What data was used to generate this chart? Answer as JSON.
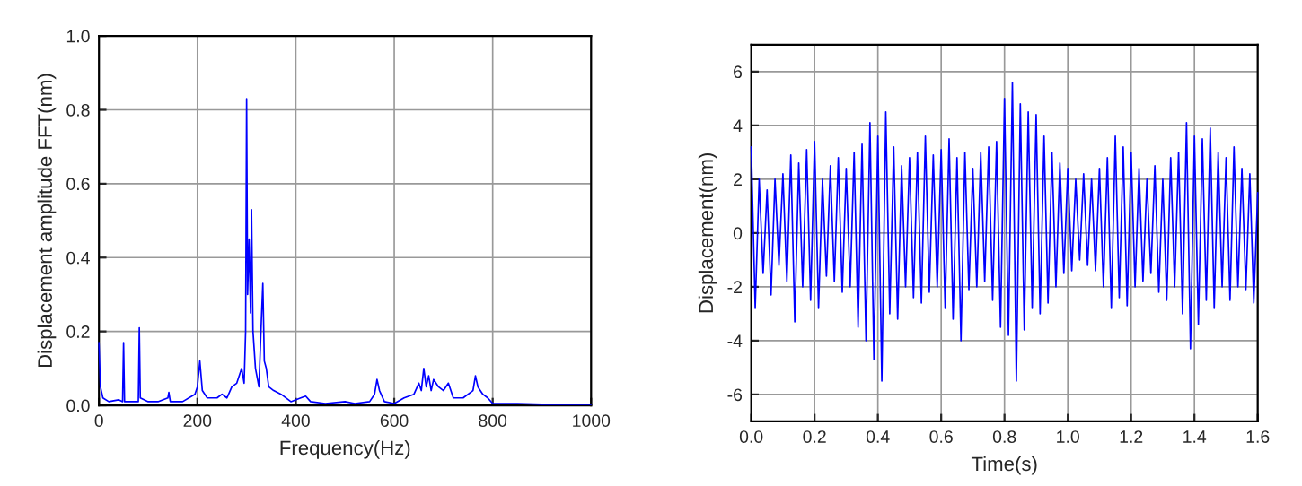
{
  "chart_data": [
    {
      "type": "line",
      "xlabel": "Frequency(Hz)",
      "ylabel": "Displacement amplitude FFT(nm)",
      "xlim": [
        0,
        1000
      ],
      "ylim": [
        0,
        1
      ],
      "xticks": [
        0,
        200,
        400,
        600,
        800,
        1000
      ],
      "yticks": [
        {
          "value": 0,
          "label": "0.0"
        },
        0.2,
        0.4,
        0.6,
        0.8,
        {
          "value": 1,
          "label": "1.0"
        }
      ],
      "grid": true,
      "legend": false,
      "series": [
        {
          "color": "#0000ff",
          "x": [
            0,
            3,
            8,
            20,
            40,
            48,
            50,
            52,
            70,
            80,
            82,
            84,
            100,
            120,
            140,
            142,
            145,
            170,
            195,
            200,
            205,
            210,
            220,
            240,
            250,
            260,
            270,
            280,
            290,
            295,
            298,
            300,
            302,
            305,
            308,
            310,
            313,
            318,
            325,
            330,
            333,
            336,
            340,
            345,
            355,
            370,
            390,
            410,
            420,
            430,
            460,
            500,
            520,
            550,
            560,
            565,
            570,
            580,
            600,
            620,
            640,
            650,
            655,
            660,
            665,
            670,
            675,
            680,
            690,
            700,
            710,
            720,
            740,
            760,
            765,
            770,
            780,
            790,
            800,
            850,
            900,
            950,
            1000
          ],
          "values": [
            0.17,
            0.05,
            0.02,
            0.01,
            0.015,
            0.01,
            0.17,
            0.01,
            0.01,
            0.01,
            0.21,
            0.02,
            0.01,
            0.01,
            0.02,
            0.035,
            0.01,
            0.01,
            0.03,
            0.05,
            0.12,
            0.04,
            0.02,
            0.02,
            0.03,
            0.02,
            0.05,
            0.06,
            0.1,
            0.06,
            0.2,
            0.83,
            0.3,
            0.45,
            0.25,
            0.53,
            0.2,
            0.1,
            0.05,
            0.23,
            0.33,
            0.12,
            0.1,
            0.05,
            0.04,
            0.03,
            0.01,
            0.02,
            0.025,
            0.01,
            0.005,
            0.01,
            0.005,
            0.01,
            0.03,
            0.07,
            0.04,
            0.01,
            0.005,
            0.02,
            0.03,
            0.06,
            0.04,
            0.1,
            0.05,
            0.08,
            0.04,
            0.07,
            0.05,
            0.04,
            0.06,
            0.02,
            0.02,
            0.04,
            0.08,
            0.05,
            0.03,
            0.02,
            0.005,
            0.005,
            0.003,
            0.003,
            0.003
          ]
        }
      ]
    },
    {
      "type": "line",
      "xlabel": "Time(s)",
      "ylabel": "Displacement(nm)",
      "xlim": [
        0,
        1.6
      ],
      "ylim": [
        -7,
        7
      ],
      "xticks": [
        {
          "value": 0,
          "label": "0.0"
        },
        0.2,
        0.4,
        0.6,
        0.8,
        {
          "value": 1,
          "label": "1.0"
        },
        1.2,
        1.4,
        1.6
      ],
      "yticks": [
        -6,
        -4,
        -2,
        0,
        2,
        4,
        6
      ],
      "grid": true,
      "legend": false,
      "series": [
        {
          "color": "#0000ff",
          "x": [
            0.0,
            0.0125,
            0.025,
            0.0375,
            0.05,
            0.0625,
            0.075,
            0.0875,
            0.1,
            0.1125,
            0.125,
            0.1375,
            0.15,
            0.1625,
            0.175,
            0.1875,
            0.2,
            0.2125,
            0.225,
            0.2375,
            0.25,
            0.2625,
            0.275,
            0.2875,
            0.3,
            0.3125,
            0.325,
            0.3375,
            0.35,
            0.3625,
            0.375,
            0.3875,
            0.4,
            0.4125,
            0.425,
            0.4375,
            0.45,
            0.4625,
            0.475,
            0.4875,
            0.5,
            0.5125,
            0.525,
            0.5375,
            0.55,
            0.5625,
            0.575,
            0.5875,
            0.6,
            0.6125,
            0.625,
            0.6375,
            0.65,
            0.6625,
            0.675,
            0.6875,
            0.7,
            0.7125,
            0.725,
            0.7375,
            0.75,
            0.7625,
            0.775,
            0.7875,
            0.8,
            0.8125,
            0.825,
            0.8375,
            0.85,
            0.8625,
            0.875,
            0.8875,
            0.9,
            0.9125,
            0.925,
            0.9375,
            0.95,
            0.9625,
            0.975,
            0.9875,
            1.0,
            1.0125,
            1.025,
            1.0375,
            1.05,
            1.0625,
            1.075,
            1.0875,
            1.1,
            1.1125,
            1.125,
            1.1375,
            1.15,
            1.1625,
            1.175,
            1.1875,
            1.2,
            1.2125,
            1.225,
            1.2375,
            1.25,
            1.2625,
            1.275,
            1.2875,
            1.3,
            1.3125,
            1.325,
            1.3375,
            1.35,
            1.3625,
            1.375,
            1.3875,
            1.4,
            1.4125,
            1.425,
            1.4375,
            1.45,
            1.4625,
            1.475,
            1.4875,
            1.5,
            1.5125,
            1.525,
            1.5375,
            1.55,
            1.5625,
            1.575,
            1.5875,
            1.6
          ],
          "values": [
            3.2,
            -2.8,
            2.0,
            -1.5,
            1.6,
            -2.3,
            2.0,
            -1.2,
            2.2,
            -1.8,
            2.9,
            -3.3,
            2.6,
            -2.0,
            3.1,
            -2.5,
            3.4,
            -2.8,
            2.0,
            -1.6,
            2.5,
            -1.8,
            2.8,
            -2.2,
            2.4,
            -2.0,
            3.0,
            -3.5,
            3.3,
            -4.0,
            4.1,
            -4.7,
            3.6,
            -5.5,
            4.5,
            -3.0,
            3.2,
            -3.2,
            2.5,
            -2.0,
            2.8,
            -2.4,
            3.0,
            -2.6,
            3.6,
            -2.2,
            2.9,
            -2.0,
            3.1,
            -2.8,
            3.5,
            -3.2,
            2.8,
            -4.0,
            3.0,
            -2.1,
            2.4,
            -2.0,
            3.0,
            -1.8,
            3.2,
            -2.5,
            3.4,
            -3.5,
            5.0,
            -3.8,
            5.6,
            -5.5,
            4.8,
            -3.6,
            4.5,
            -2.8,
            4.4,
            -3.0,
            3.6,
            -2.6,
            3.0,
            -2.0,
            2.6,
            -1.5,
            2.4,
            -1.4,
            2.0,
            -1.0,
            2.2,
            -1.2,
            2.0,
            -1.4,
            2.4,
            -2.0,
            2.8,
            -2.8,
            3.6,
            -2.4,
            3.2,
            -2.7,
            3.0,
            -2.0,
            2.4,
            -1.8,
            2.0,
            -1.5,
            2.5,
            -2.2,
            2.0,
            -2.5,
            2.8,
            -2.0,
            3.0,
            -3.0,
            4.1,
            -4.3,
            3.6,
            -3.4,
            3.5,
            -2.5,
            3.9,
            -2.8,
            3.0,
            -2.0,
            2.8,
            -2.5,
            3.2,
            -2.0,
            2.4,
            -2.1,
            2.2,
            -2.6,
            1.5
          ]
        }
      ]
    }
  ]
}
